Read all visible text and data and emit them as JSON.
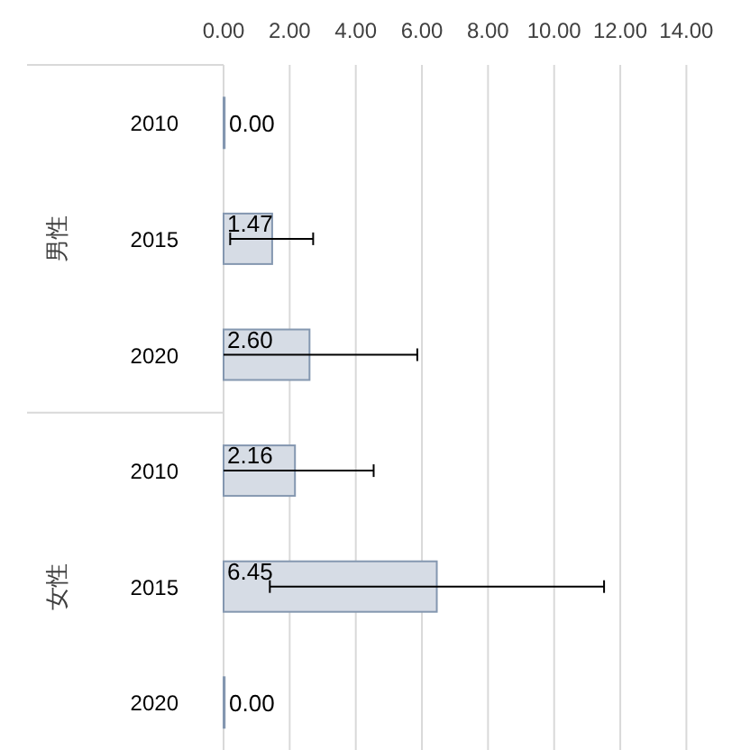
{
  "chart_data": {
    "type": "bar",
    "orientation": "horizontal",
    "categories": [
      "2010",
      "2015",
      "2020",
      "2010",
      "2015",
      "2020"
    ],
    "values": [
      0,
      1.47,
      2.6,
      2.16,
      6.45,
      0
    ],
    "errors": [
      null,
      [
        0.2,
        2.71
      ],
      [
        0,
        5.86
      ],
      [
        0,
        4.54
      ],
      [
        1.4,
        11.51
      ],
      null
    ],
    "value_labels": [
      "0.00",
      "1.47",
      "2.60",
      "2.16",
      "6.45",
      "0.00"
    ],
    "color": "#d6dce5",
    "xlim": [
      0,
      14
    ],
    "xticks": [
      {
        "value": 0,
        "label": "0.00"
      },
      {
        "value": 2,
        "label": "2.00"
      },
      {
        "value": 4,
        "label": "4.00"
      },
      {
        "value": 6,
        "label": "6.00"
      },
      {
        "value": 8,
        "label": "8.00"
      },
      {
        "value": 10,
        "label": "10.00"
      },
      {
        "value": 12,
        "label": "12.00"
      },
      {
        "value": 14,
        "label": "14.00"
      }
    ],
    "annotations": [
      "男性",
      "女性"
    ],
    "grid": "x"
  }
}
